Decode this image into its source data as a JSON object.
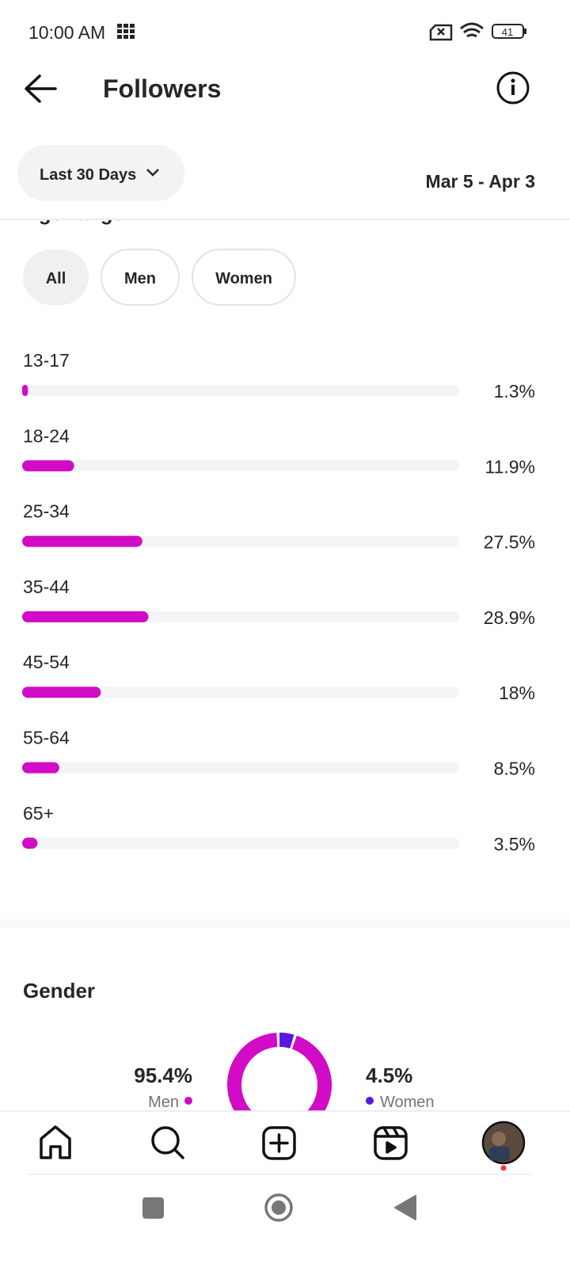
{
  "status_bar": {
    "time": "10:00 AM",
    "battery": "41"
  },
  "header": {
    "title": "Followers"
  },
  "filter": {
    "range": "Last 30 Days",
    "dates": "Mar 5 - Apr 3"
  },
  "age_range": {
    "title": "Age range",
    "tabs": [
      "All",
      "Men",
      "Women"
    ],
    "categories": [
      "13-17",
      "18-24",
      "25-34",
      "35-44",
      "45-54",
      "55-64",
      "65+"
    ],
    "values": [
      1.3,
      11.9,
      27.5,
      28.9,
      18,
      8.5,
      3.5
    ],
    "value_labels": [
      "1.3%",
      "11.9%",
      "27.5%",
      "28.9%",
      "18%",
      "8.5%",
      "3.5%"
    ],
    "xlim": [
      0,
      100
    ],
    "color": "#d10bc6"
  },
  "gender": {
    "title": "Gender",
    "men": {
      "value": 95.4,
      "value_label": "95.4%",
      "label": "Men",
      "color": "#d10bc6"
    },
    "women": {
      "value": 4.5,
      "value_label": "4.5%",
      "label": "Women",
      "color": "#5a18e0"
    }
  }
}
